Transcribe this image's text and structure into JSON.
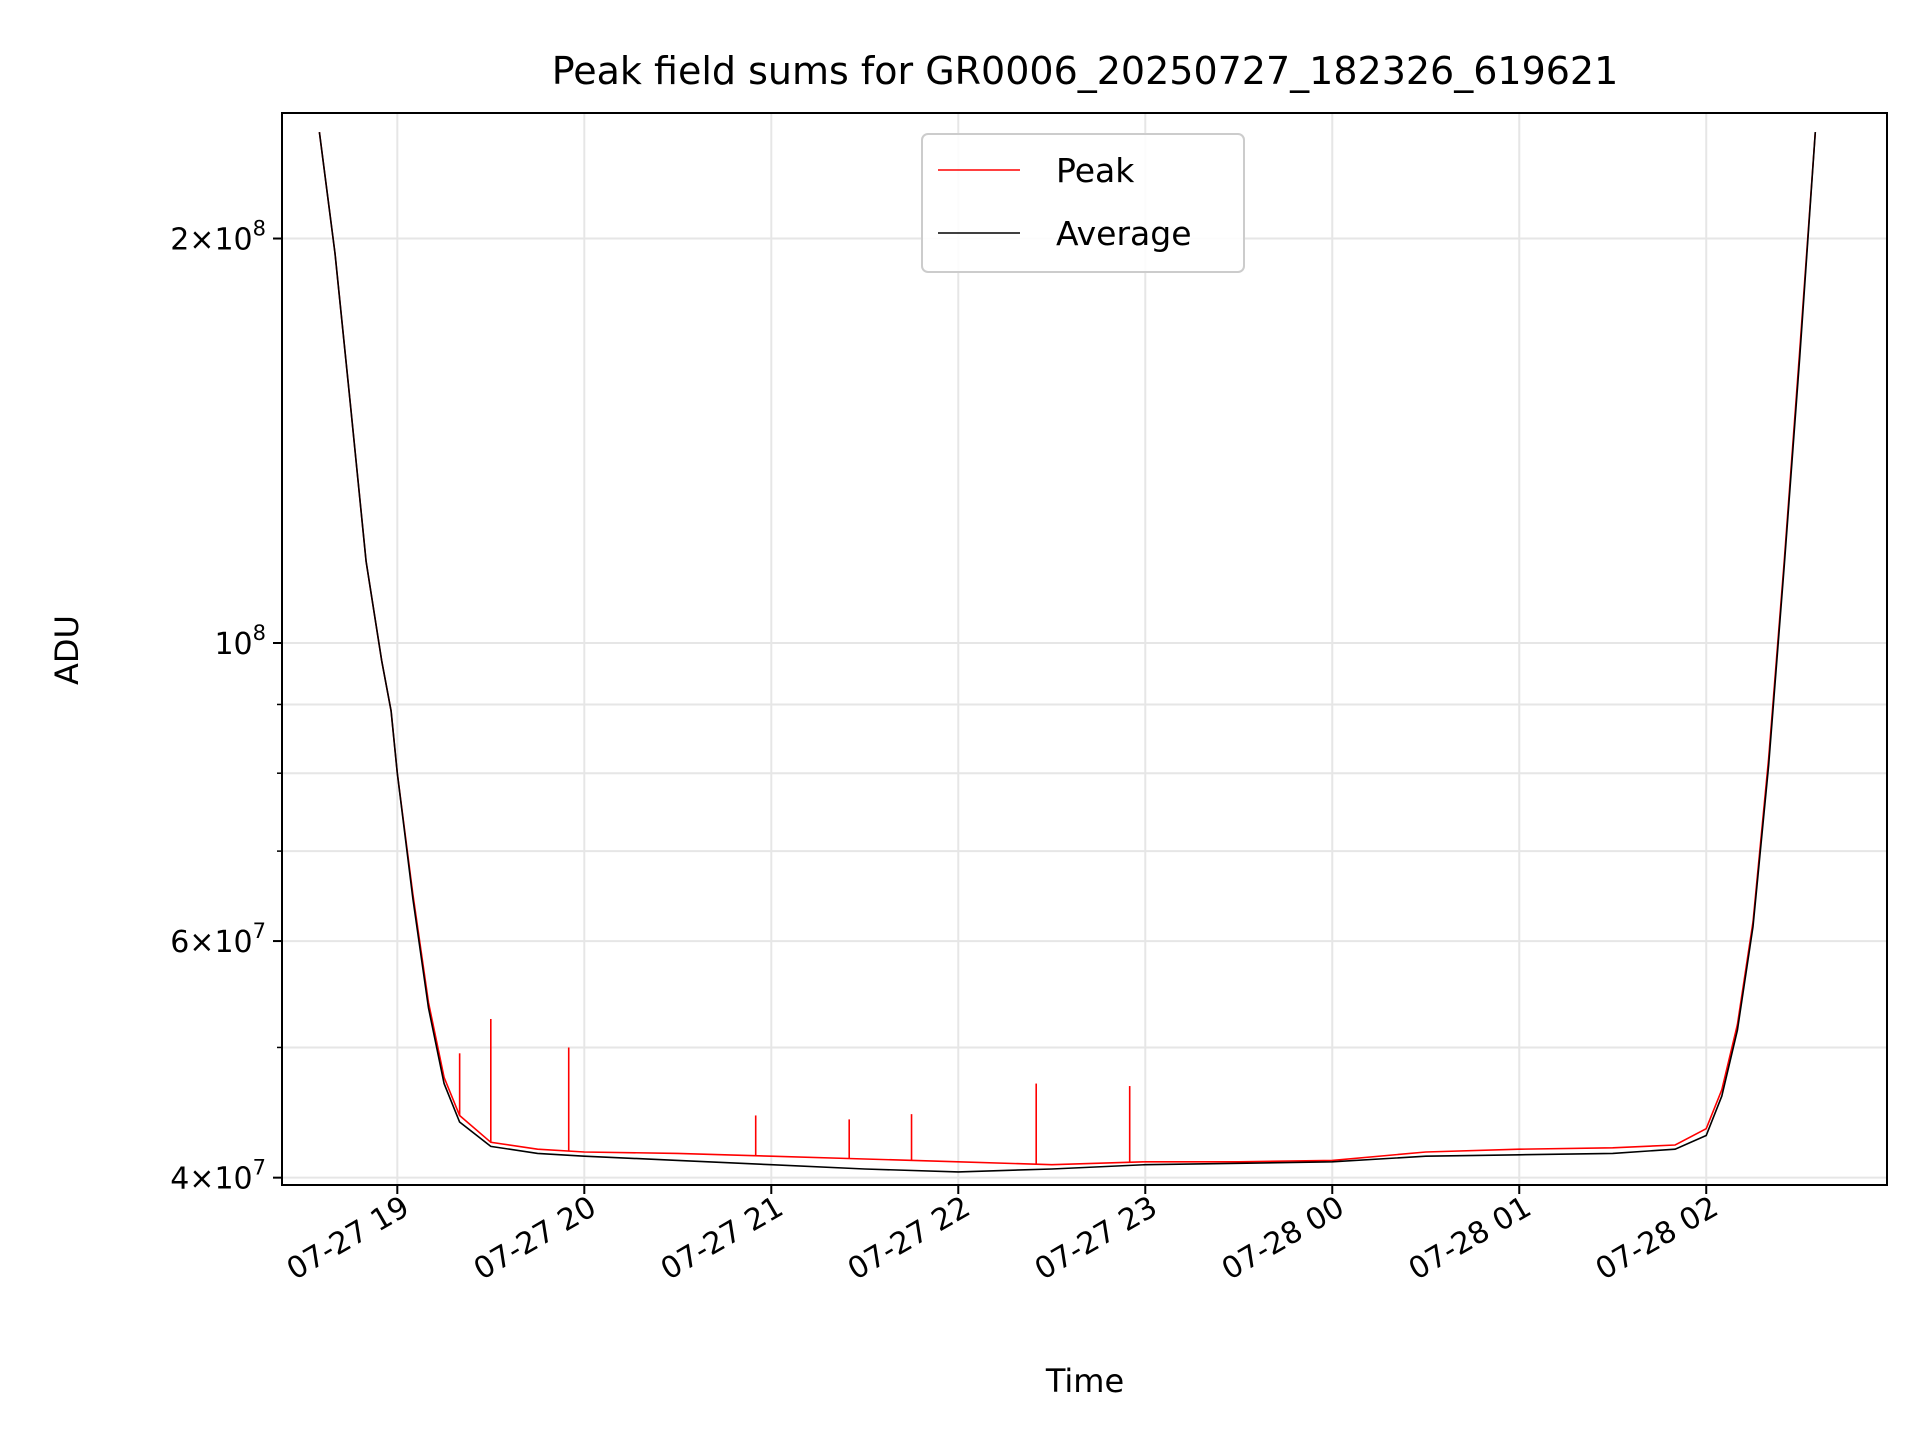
{
  "chart_data": {
    "type": "line",
    "title": "Peak field sums for GR0006_20250727_182326_619621",
    "xlabel": "Time",
    "ylabel": "ADU",
    "yscale": "log",
    "xlim": [
      "2025-07-27T18:23",
      "2025-07-28T02:58"
    ],
    "ylim": [
      39500000,
      248000000
    ],
    "grid": true,
    "legend": {
      "placement": "top-center"
    },
    "x_ticks": [
      "07-27 19",
      "07-27 20",
      "07-27 21",
      "07-27 22",
      "07-27 23",
      "07-28 00",
      "07-28 01",
      "07-28 02"
    ],
    "x_tick_times": [
      "2025-07-27T19:00",
      "2025-07-27T20:00",
      "2025-07-27T21:00",
      "2025-07-27T22:00",
      "2025-07-27T23:00",
      "2025-07-28T00:00",
      "2025-07-28T01:00",
      "2025-07-28T02:00"
    ],
    "y_ticks": [
      {
        "value": 40000000,
        "mantissa": "4",
        "exponent": "7",
        "times": "×10"
      },
      {
        "value": 60000000,
        "mantissa": "6",
        "exponent": "7",
        "times": "×10"
      },
      {
        "value": 100000000,
        "mantissa": "",
        "exponent": "8",
        "times": "10"
      },
      {
        "value": 200000000,
        "mantissa": "2",
        "exponent": "8",
        "times": "×10"
      }
    ],
    "y_minor_ticks": [
      50000000,
      70000000,
      80000000,
      90000000
    ],
    "series": [
      {
        "name": "Peak",
        "color": "#ff0000",
        "x": [
          "2025-07-27T18:35",
          "2025-07-27T18:40",
          "2025-07-27T18:45",
          "2025-07-27T18:50",
          "2025-07-27T18:55",
          "2025-07-27T18:58",
          "2025-07-27T19:00",
          "2025-07-27T19:05",
          "2025-07-27T19:10",
          "2025-07-27T19:15",
          "2025-07-27T19:20",
          "2025-07-27T19:30",
          "2025-07-27T19:45",
          "2025-07-27T20:00",
          "2025-07-27T20:30",
          "2025-07-27T21:00",
          "2025-07-27T21:30",
          "2025-07-27T22:00",
          "2025-07-27T22:30",
          "2025-07-27T23:00",
          "2025-07-27T23:30",
          "2025-07-28T00:00",
          "2025-07-28T00:30",
          "2025-07-28T01:00",
          "2025-07-28T01:30",
          "2025-07-28T01:50",
          "2025-07-28T02:00",
          "2025-07-28T02:05",
          "2025-07-28T02:10",
          "2025-07-28T02:15",
          "2025-07-28T02:20",
          "2025-07-28T02:25",
          "2025-07-28T02:30",
          "2025-07-28T02:35"
        ],
        "y": [
          240000000,
          195000000,
          150000000,
          115000000,
          97000000,
          89000000,
          80000000,
          65000000,
          54000000,
          47500000,
          44500000,
          42500000,
          42000000,
          41800000,
          41700000,
          41500000,
          41300000,
          41100000,
          40900000,
          41100000,
          41100000,
          41200000,
          41800000,
          42000000,
          42100000,
          42300000,
          43500000,
          46500000,
          52000000,
          62000000,
          82000000,
          115000000,
          165000000,
          240000000
        ],
        "spikes": [
          {
            "x": "2025-07-27T19:20",
            "y": 49500000
          },
          {
            "x": "2025-07-27T19:30",
            "y": 52500000
          },
          {
            "x": "2025-07-27T19:55",
            "y": 50000000
          },
          {
            "x": "2025-07-27T20:55",
            "y": 44500000
          },
          {
            "x": "2025-07-27T21:25",
            "y": 44200000
          },
          {
            "x": "2025-07-27T21:45",
            "y": 44600000
          },
          {
            "x": "2025-07-27T22:25",
            "y": 47000000
          },
          {
            "x": "2025-07-27T22:55",
            "y": 46800000
          }
        ]
      },
      {
        "name": "Average",
        "color": "#000000",
        "x": [
          "2025-07-27T18:35",
          "2025-07-27T18:40",
          "2025-07-27T18:45",
          "2025-07-27T18:50",
          "2025-07-27T18:55",
          "2025-07-27T18:58",
          "2025-07-27T19:00",
          "2025-07-27T19:05",
          "2025-07-27T19:10",
          "2025-07-27T19:15",
          "2025-07-27T19:20",
          "2025-07-27T19:30",
          "2025-07-27T19:45",
          "2025-07-27T20:00",
          "2025-07-27T20:30",
          "2025-07-27T21:00",
          "2025-07-27T21:30",
          "2025-07-27T22:00",
          "2025-07-27T22:30",
          "2025-07-27T23:00",
          "2025-07-27T23:30",
          "2025-07-28T00:00",
          "2025-07-28T00:30",
          "2025-07-28T01:00",
          "2025-07-28T01:30",
          "2025-07-28T01:50",
          "2025-07-28T02:00",
          "2025-07-28T02:05",
          "2025-07-28T02:10",
          "2025-07-28T02:15",
          "2025-07-28T02:20",
          "2025-07-28T02:25",
          "2025-07-28T02:30",
          "2025-07-28T02:35"
        ],
        "y": [
          240000000,
          195000000,
          150000000,
          115000000,
          97000000,
          89000000,
          80000000,
          64500000,
          53500000,
          47000000,
          44000000,
          42200000,
          41700000,
          41500000,
          41200000,
          40900000,
          40600000,
          40400000,
          40600000,
          40900000,
          41000000,
          41100000,
          41500000,
          41600000,
          41700000,
          42000000,
          43000000,
          46000000,
          51500000,
          61500000,
          81000000,
          114000000,
          163000000,
          240000000
        ]
      }
    ]
  }
}
